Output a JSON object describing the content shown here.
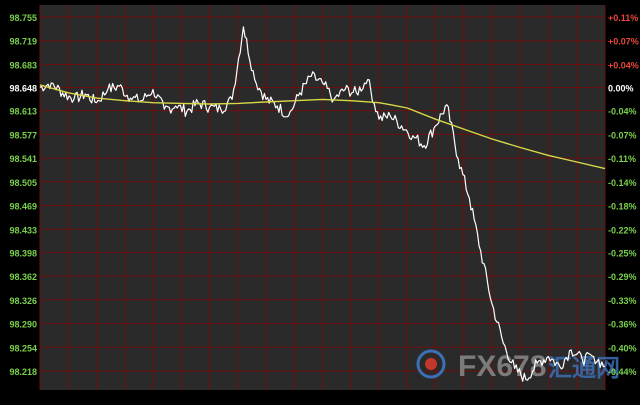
{
  "chart_data": {
    "type": "line",
    "title": "",
    "xlabel": "",
    "ylabel": "",
    "ylim": [
      98.2,
      98.77
    ],
    "reference_price": 98.648,
    "left_axis_ticks": [
      {
        "value": 98.755,
        "label": "98.755"
      },
      {
        "value": 98.719,
        "label": "98.719"
      },
      {
        "value": 98.683,
        "label": "98.683"
      },
      {
        "value": 98.648,
        "label": "98.648",
        "highlight": true
      },
      {
        "value": 98.613,
        "label": "98.613"
      },
      {
        "value": 98.577,
        "label": "98.577"
      },
      {
        "value": 98.541,
        "label": "98.541"
      },
      {
        "value": 98.505,
        "label": "98.505"
      },
      {
        "value": 98.469,
        "label": "98.469"
      },
      {
        "value": 98.433,
        "label": "98.433"
      },
      {
        "value": 98.398,
        "label": "98.398"
      },
      {
        "value": 98.362,
        "label": "98.362"
      },
      {
        "value": 98.326,
        "label": "98.326"
      },
      {
        "value": 98.29,
        "label": "98.290"
      },
      {
        "value": 98.254,
        "label": "98.254"
      },
      {
        "value": 98.218,
        "label": "98.218"
      }
    ],
    "right_axis_ticks": [
      {
        "value": 98.755,
        "label": "+0.11%",
        "sign": "pos"
      },
      {
        "value": 98.719,
        "label": "+0.07%",
        "sign": "pos"
      },
      {
        "value": 98.683,
        "label": "+0.04%",
        "sign": "pos"
      },
      {
        "value": 98.648,
        "label": "0.00%",
        "sign": "zero"
      },
      {
        "value": 98.613,
        "label": "-0.04%",
        "sign": "neg"
      },
      {
        "value": 98.577,
        "label": "-0.07%",
        "sign": "neg"
      },
      {
        "value": 98.541,
        "label": "-0.11%",
        "sign": "neg"
      },
      {
        "value": 98.505,
        "label": "-0.14%",
        "sign": "neg"
      },
      {
        "value": 98.469,
        "label": "-0.18%",
        "sign": "neg"
      },
      {
        "value": 98.433,
        "label": "-0.22%",
        "sign": "neg"
      },
      {
        "value": 98.398,
        "label": "-0.25%",
        "sign": "neg"
      },
      {
        "value": 98.362,
        "label": "-0.29%",
        "sign": "neg"
      },
      {
        "value": 98.326,
        "label": "-0.33%",
        "sign": "neg"
      },
      {
        "value": 98.29,
        "label": "-0.36%",
        "sign": "neg"
      },
      {
        "value": 98.254,
        "label": "-0.40%",
        "sign": "neg"
      },
      {
        "value": 98.218,
        "label": "-0.44%",
        "sign": "neg"
      }
    ],
    "grid": true,
    "vertical_gridlines": 20,
    "series": [
      {
        "color": "#ffffff",
        "x": [
          0,
          2,
          4,
          6,
          8,
          10,
          12,
          14,
          16,
          18,
          20,
          22,
          24,
          26,
          28,
          30,
          32,
          34,
          36,
          38,
          40,
          42,
          44,
          46,
          48,
          50,
          52,
          54,
          56,
          58,
          60,
          62,
          64,
          66,
          68,
          70,
          72,
          74,
          76,
          78,
          80,
          82,
          84,
          86,
          88,
          90,
          92,
          94,
          96,
          98,
          100
        ],
        "values": [
          98.648,
          98.655,
          98.64,
          98.63,
          98.638,
          98.625,
          98.645,
          98.65,
          98.632,
          98.628,
          98.645,
          98.615,
          98.62,
          98.612,
          98.625,
          98.618,
          98.615,
          98.63,
          98.74,
          98.66,
          98.63,
          98.62,
          98.605,
          98.64,
          98.665,
          98.655,
          98.63,
          98.645,
          98.64,
          98.66,
          98.6,
          98.605,
          98.59,
          98.575,
          98.56,
          98.59,
          98.622,
          98.54,
          98.48,
          98.4,
          98.32,
          98.26,
          98.222,
          98.205,
          98.23,
          98.24,
          98.225,
          98.25,
          98.235,
          98.24,
          98.225
        ]
      },
      {
        "color": "#d8d84a",
        "x": [
          0,
          5,
          10,
          15,
          20,
          25,
          30,
          35,
          40,
          45,
          50,
          55,
          60,
          62,
          65,
          70,
          75,
          80,
          85,
          90,
          95,
          100
        ],
        "values": [
          98.652,
          98.64,
          98.632,
          98.628,
          98.625,
          98.624,
          98.623,
          98.624,
          98.626,
          98.628,
          98.63,
          98.628,
          98.625,
          98.622,
          98.617,
          98.6,
          98.585,
          98.57,
          98.557,
          98.545,
          98.535,
          98.525
        ]
      }
    ]
  },
  "watermark": {
    "brand": "FX678",
    "cn": "汇通网",
    "colors": {
      "brand": "#8a8a8a",
      "accent": "#c0392b",
      "cn": "#3d6fb5"
    }
  },
  "colors": {
    "background": "#000000",
    "plot_bg": "#2a2a2a",
    "grid": "#6e0f0f",
    "left_tick": "#7ad14b",
    "highlight_tick": "#ffffff",
    "right_pos": "#e8483a",
    "right_neg": "#7ad14b",
    "right_zero": "#ffffff"
  }
}
